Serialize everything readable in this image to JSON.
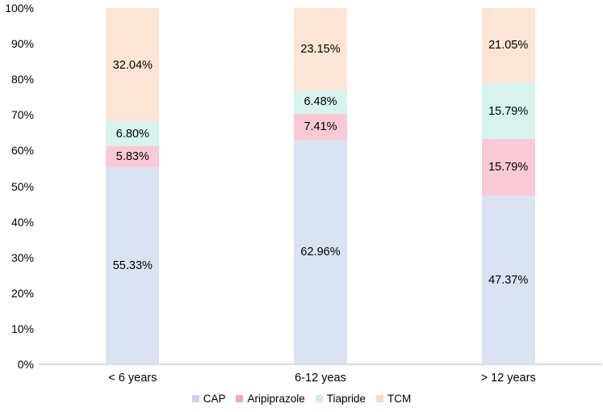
{
  "chart_data": {
    "type": "bar",
    "subtype": "stacked-100-percent",
    "title": "",
    "xlabel": "",
    "ylabel": "",
    "categories": [
      "< 6 years",
      "6-12 yeas",
      "> 12 years"
    ],
    "series": [
      {
        "name": "CAP",
        "color": "#dbe2f4",
        "legend_color": "#c9d6ee",
        "values": [
          55.33,
          62.96,
          47.37
        ],
        "labels": [
          "55.33%",
          "62.96%",
          "47.37%"
        ]
      },
      {
        "name": "Aripiprazole",
        "color": "#f9cad5",
        "legend_color": "#f2a9b6",
        "values": [
          5.83,
          7.41,
          15.79
        ],
        "labels": [
          "5.83%",
          "7.41%",
          "15.79%"
        ]
      },
      {
        "name": "Tiapride",
        "color": "#d7f3ee",
        "legend_color": "#cfeee8",
        "values": [
          6.8,
          6.48,
          15.79
        ],
        "labels": [
          "6.80%",
          "6.48%",
          "15.79%"
        ]
      },
      {
        "name": "TCM",
        "color": "#fce5d4",
        "legend_color": "#fbdcc4",
        "values": [
          32.04,
          23.15,
          21.05
        ],
        "labels": [
          "32.04%",
          "23.15%",
          "21.05%"
        ]
      }
    ],
    "stack_order_bottom_to_top": [
      "CAP",
      "Aripiprazole",
      "Tiapride",
      "TCM"
    ],
    "y_ticks": [
      "0%",
      "10%",
      "20%",
      "30%",
      "40%",
      "50%",
      "60%",
      "70%",
      "80%",
      "90%",
      "100%"
    ],
    "ylim": [
      0,
      100
    ],
    "grid": false,
    "legend_position": "bottom",
    "axis_line_color": "#d9d9d9",
    "text_color": "#000000",
    "background": "#ffffff"
  }
}
